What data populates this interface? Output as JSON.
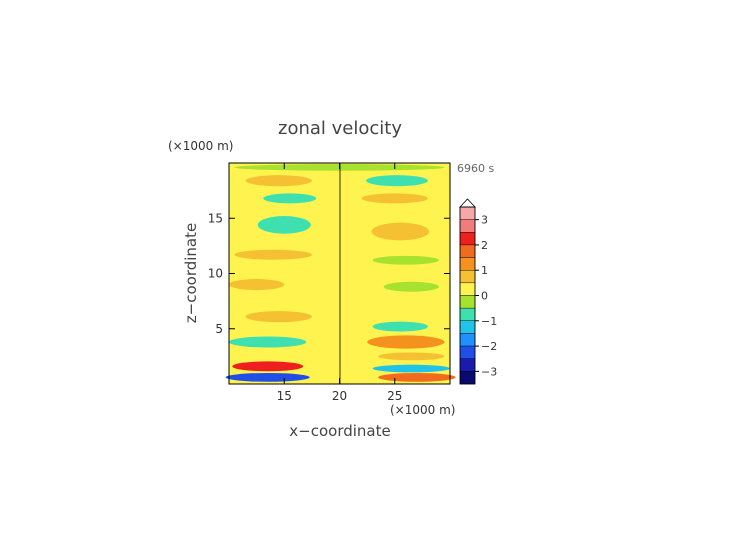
{
  "chart_data": {
    "type": "heatmap",
    "title": "zonal velocity",
    "xlabel": "x−coordinate",
    "ylabel": "z−coordinate",
    "x_unit": "(×1000 m)",
    "y_unit": "(×1000 m)",
    "time_label": "6960 s",
    "xlim": [
      10,
      30
    ],
    "ylim": [
      0,
      20
    ],
    "xticks": [
      15,
      20,
      25
    ],
    "yticks": [
      5,
      10,
      15
    ],
    "colorbar": {
      "ticks": [
        3,
        2,
        1,
        0,
        -1,
        -2,
        -3
      ],
      "tick_labels": [
        "3",
        "2",
        "1",
        "0",
        "−1",
        "−2",
        "−3"
      ],
      "levels": [
        {
          "min": 3.0,
          "max": 3.5,
          "color": "#f6a8a8"
        },
        {
          "min": 2.5,
          "max": 3.0,
          "color": "#f07c7c"
        },
        {
          "min": 2.0,
          "max": 2.5,
          "color": "#ee1f1f"
        },
        {
          "min": 1.5,
          "max": 2.0,
          "color": "#f26a1e"
        },
        {
          "min": 1.0,
          "max": 1.5,
          "color": "#f5921e"
        },
        {
          "min": 0.5,
          "max": 1.0,
          "color": "#f5c032"
        },
        {
          "min": 0.0,
          "max": 0.5,
          "color": "#fff44f"
        },
        {
          "min": -0.5,
          "max": 0.0,
          "color": "#a6e22e"
        },
        {
          "min": -1.0,
          "max": -0.5,
          "color": "#3fe0b0"
        },
        {
          "min": -1.5,
          "max": -1.0,
          "color": "#20c4e8"
        },
        {
          "min": -2.0,
          "max": -1.5,
          "color": "#1e90ff"
        },
        {
          "min": -2.5,
          "max": -2.0,
          "color": "#1f4fe8"
        },
        {
          "min": -3.0,
          "max": -2.5,
          "color": "#1a1ab0"
        },
        {
          "min": -3.5,
          "max": -3.0,
          "color": "#0a0a6e"
        }
      ]
    },
    "background_value": 0.1,
    "features": [
      {
        "xc": 14.5,
        "zc": 18.4,
        "rx": 3.0,
        "rz": 0.5,
        "value": 0.9
      },
      {
        "xc": 25.2,
        "zc": 18.4,
        "rx": 2.8,
        "rz": 0.5,
        "value": -0.8
      },
      {
        "xc": 20.0,
        "zc": 19.6,
        "rx": 9.5,
        "rz": 0.3,
        "value": -0.4
      },
      {
        "xc": 15.5,
        "zc": 16.8,
        "rx": 2.4,
        "rz": 0.45,
        "value": -0.6
      },
      {
        "xc": 25.0,
        "zc": 16.8,
        "rx": 3.0,
        "rz": 0.45,
        "value": 0.7
      },
      {
        "xc": 15.0,
        "zc": 14.4,
        "rx": 2.4,
        "rz": 0.8,
        "value": -1.0
      },
      {
        "xc": 25.5,
        "zc": 13.8,
        "rx": 2.6,
        "rz": 0.8,
        "value": 0.9
      },
      {
        "xc": 14.0,
        "zc": 11.7,
        "rx": 3.5,
        "rz": 0.45,
        "value": 0.6
      },
      {
        "xc": 26.0,
        "zc": 11.2,
        "rx": 3.0,
        "rz": 0.4,
        "value": -0.5
      },
      {
        "xc": 12.5,
        "zc": 9.0,
        "rx": 2.5,
        "rz": 0.5,
        "value": 0.7
      },
      {
        "xc": 26.5,
        "zc": 8.8,
        "rx": 2.5,
        "rz": 0.45,
        "value": -0.5
      },
      {
        "xc": 14.5,
        "zc": 6.1,
        "rx": 3.0,
        "rz": 0.5,
        "value": 0.9
      },
      {
        "xc": 25.5,
        "zc": 5.2,
        "rx": 2.5,
        "rz": 0.45,
        "value": -0.9
      },
      {
        "xc": 13.5,
        "zc": 3.8,
        "rx": 3.5,
        "rz": 0.5,
        "value": -0.9
      },
      {
        "xc": 26.0,
        "zc": 3.8,
        "rx": 3.5,
        "rz": 0.6,
        "value": 1.2
      },
      {
        "xc": 13.5,
        "zc": 1.6,
        "rx": 3.2,
        "rz": 0.45,
        "value": 2.0
      },
      {
        "xc": 26.5,
        "zc": 2.5,
        "rx": 3.0,
        "rz": 0.35,
        "value": 0.8
      },
      {
        "xc": 26.5,
        "zc": 1.4,
        "rx": 3.5,
        "rz": 0.35,
        "value": -1.2
      },
      {
        "xc": 13.5,
        "zc": 0.6,
        "rx": 3.8,
        "rz": 0.4,
        "value": -2.3
      },
      {
        "xc": 27.0,
        "zc": 0.6,
        "rx": 3.5,
        "rz": 0.4,
        "value": 1.6
      }
    ]
  }
}
